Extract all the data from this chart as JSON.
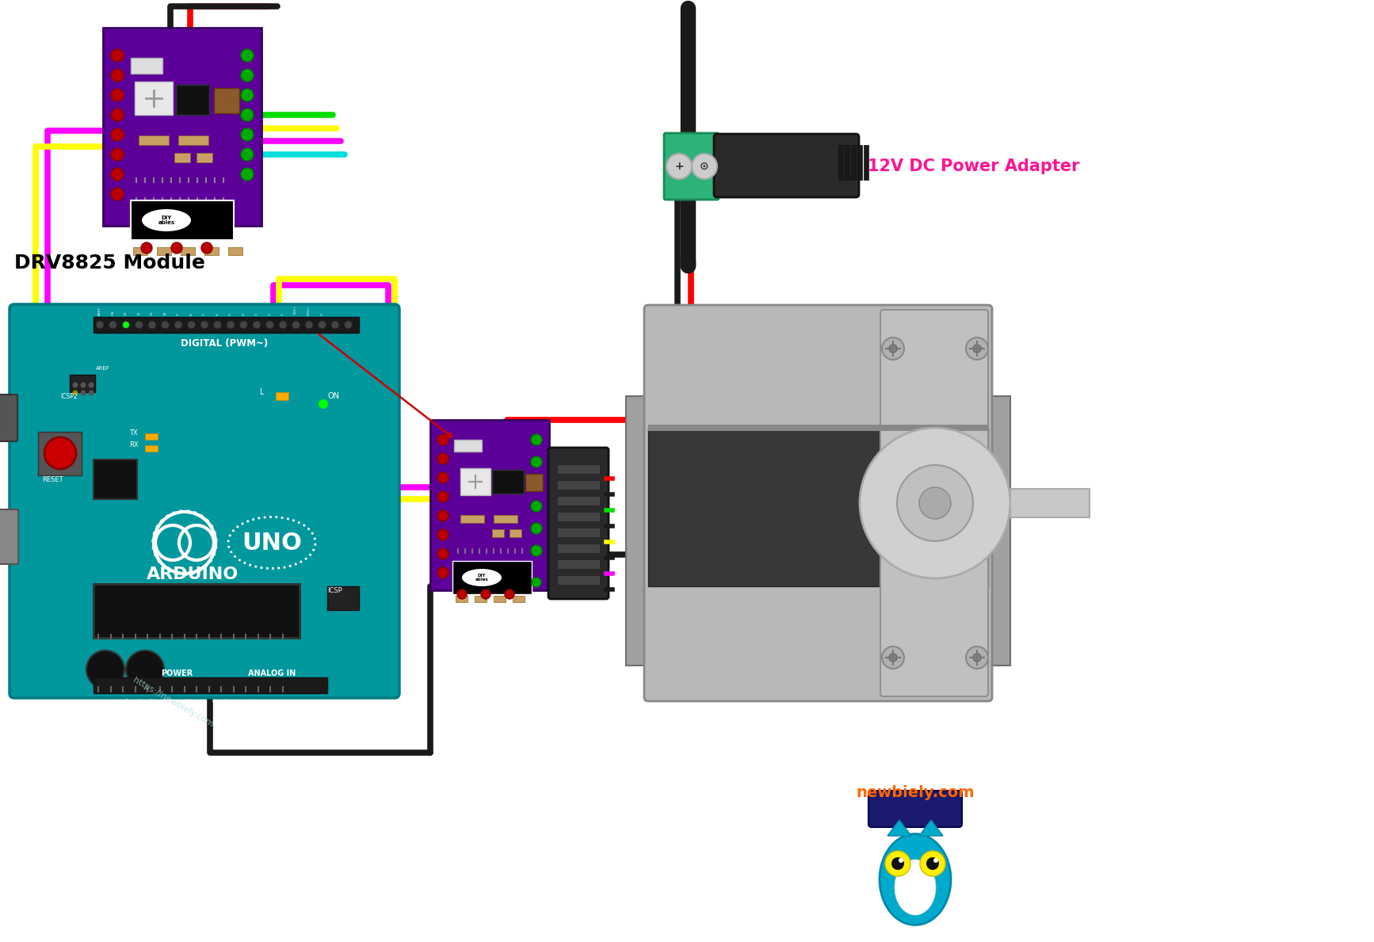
{
  "bg_color": "#ffffff",
  "label_drv8825": "DRV8825 Module",
  "label_power": "12V DC Power Adapter",
  "label_newbiely": "newbiely.com",
  "arduino_color": "#00979d",
  "arduino_dark": "#007a80",
  "drv8825_color": "#5c0099",
  "wire_red": "#ff0000",
  "wire_black": "#1a1a1a",
  "wire_green": "#00dd00",
  "wire_yellow": "#ffff00",
  "wire_magenta": "#ff00ff",
  "wire_cyan": "#00dddd",
  "connector_green": "#2db37a",
  "label_color_power": "#ff1493",
  "motor_face": "#b0b0b0",
  "motor_body": "#909090",
  "motor_side": "#383838",
  "motor_light": "#d0d0d0"
}
